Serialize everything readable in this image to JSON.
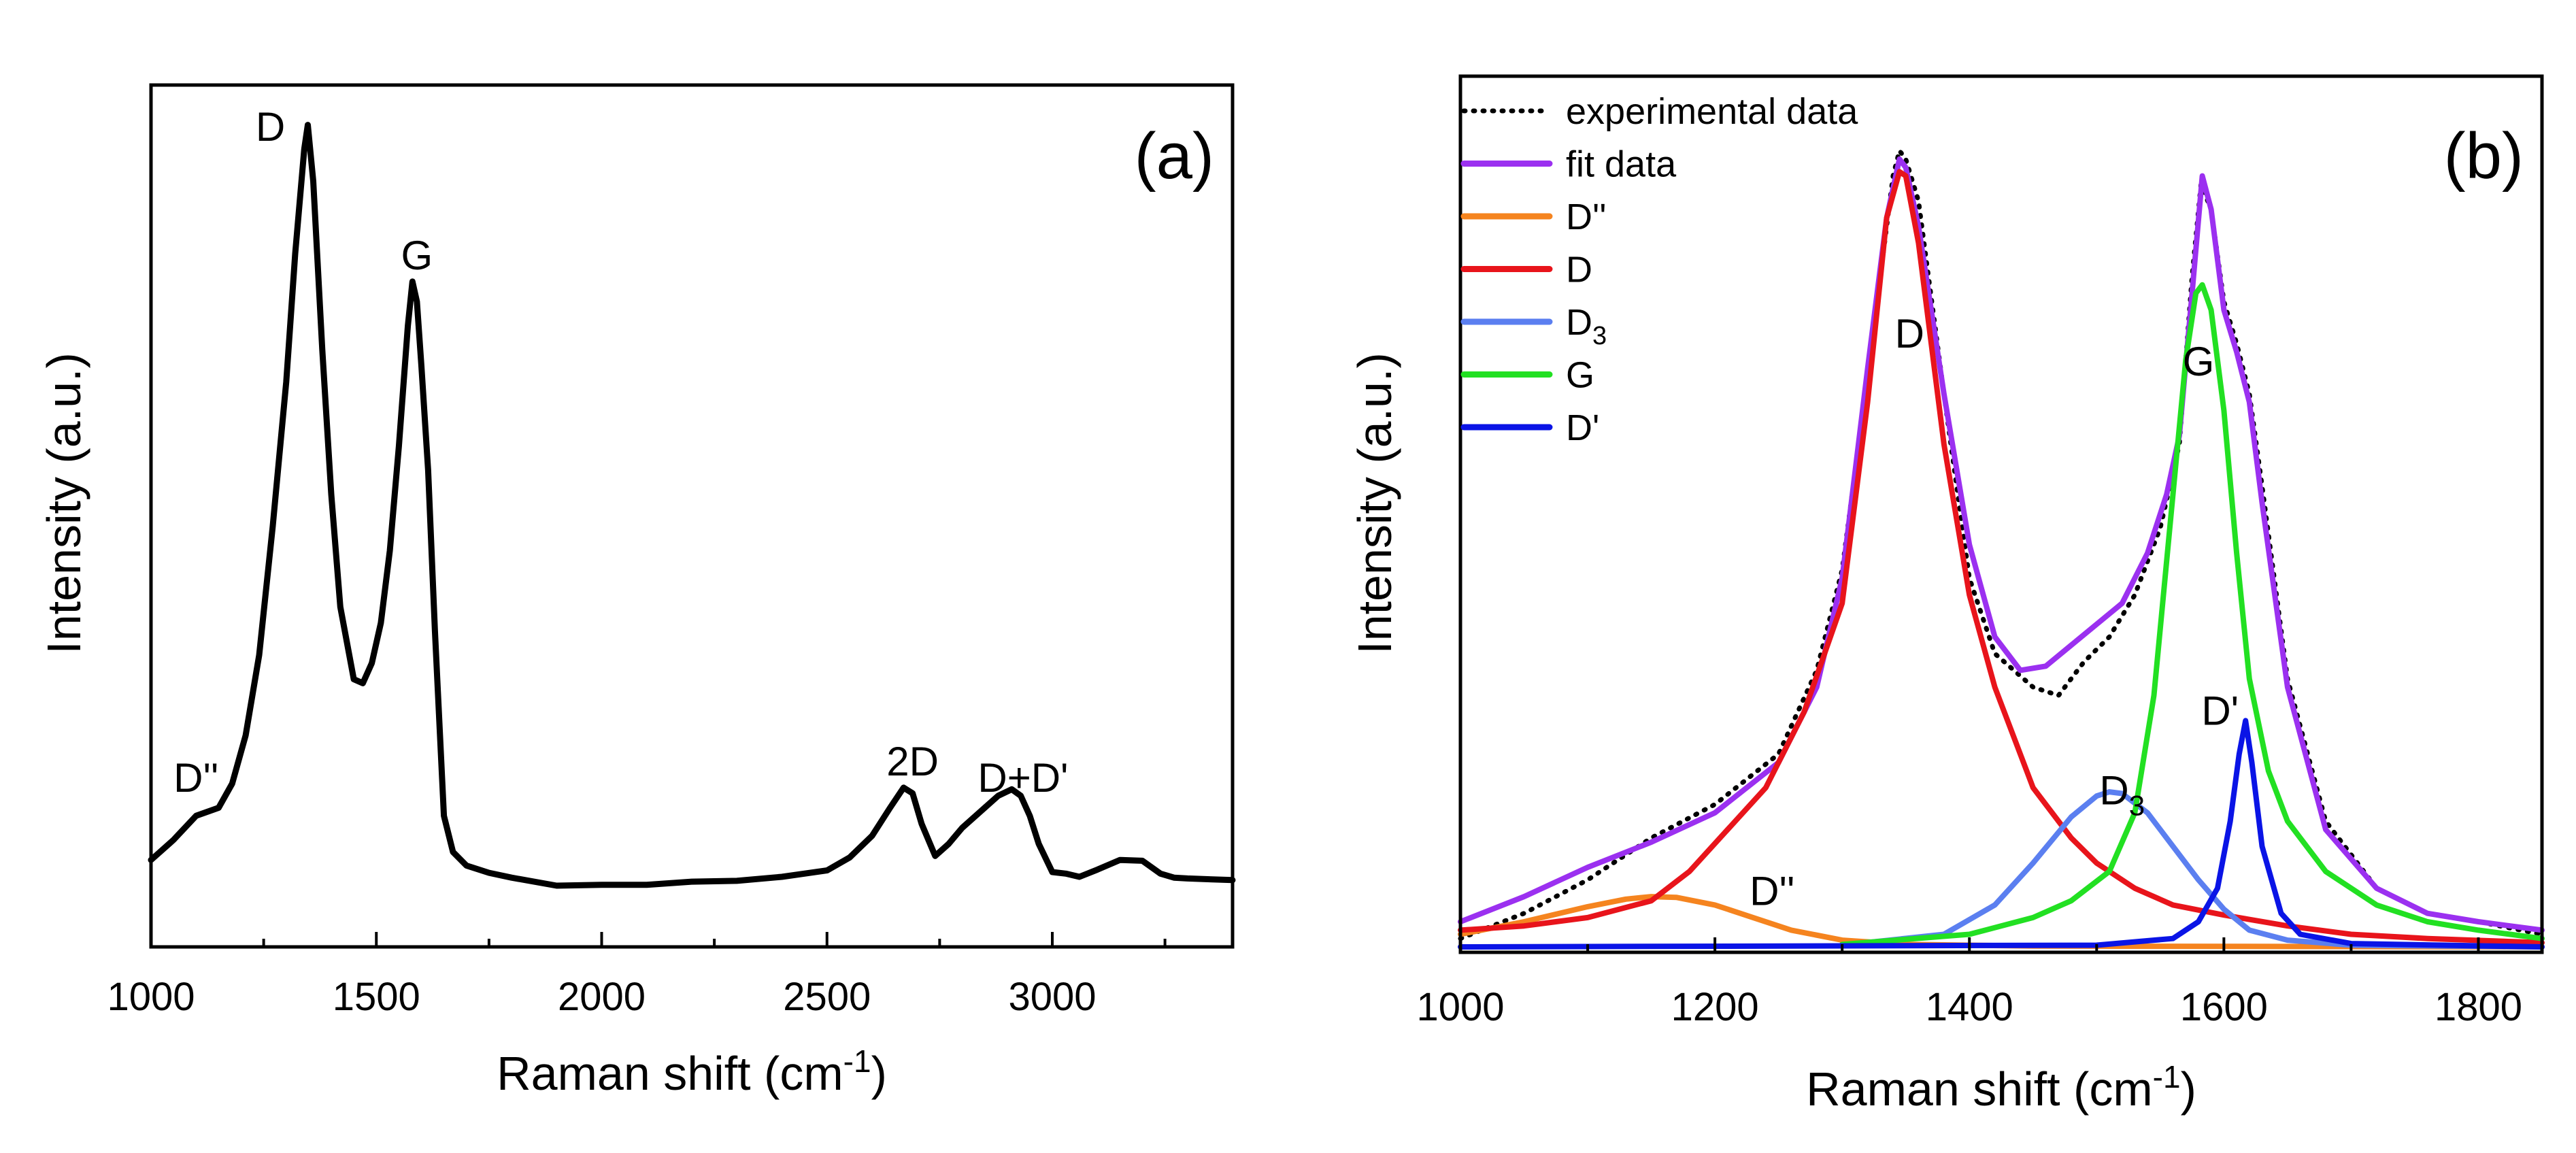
{
  "chart_data": [
    {
      "type": "line",
      "panel_label": "(a)",
      "xlabel": "Raman shift (cm",
      "xlabel_sup": "-1",
      "xlabel_end": ")",
      "ylabel": "Intensity (a.u.)",
      "xlim": [
        1000,
        3400
      ],
      "ylim": [
        0,
        100
      ],
      "x_ticks": [
        "1000",
        "1500",
        "2000",
        "2500",
        "3000"
      ],
      "x_tick_values": [
        1000,
        1500,
        2000,
        2500,
        3000
      ],
      "x_minor_ticks": [
        1250,
        1750,
        2250,
        2750,
        3250
      ],
      "annotations": [
        {
          "text": "D''",
          "x": 1100,
          "y": 15
        },
        {
          "text": "D",
          "x": 1265,
          "y": 96
        },
        {
          "text": "G",
          "x": 1590,
          "y": 80
        },
        {
          "text": "2D",
          "x": 2690,
          "y": 17
        },
        {
          "text": "D+D'",
          "x": 2935,
          "y": 15
        }
      ],
      "series": [
        {
          "name": "spectrum",
          "color": "#000000",
          "x": [
            1000,
            1050,
            1100,
            1150,
            1180,
            1210,
            1240,
            1270,
            1300,
            1320,
            1340,
            1348,
            1360,
            1380,
            1400,
            1420,
            1450,
            1470,
            1490,
            1510,
            1530,
            1550,
            1570,
            1580,
            1590,
            1600,
            1615,
            1630,
            1650,
            1670,
            1700,
            1750,
            1800,
            1900,
            2000,
            2100,
            2200,
            2300,
            2400,
            2500,
            2550,
            2600,
            2640,
            2670,
            2690,
            2710,
            2740,
            2770,
            2800,
            2850,
            2880,
            2910,
            2930,
            2950,
            2970,
            3000,
            3030,
            3060,
            3100,
            3150,
            3200,
            3240,
            3270,
            3300,
            3400
          ],
          "y": [
            6.5,
            9,
            12,
            13,
            16,
            22,
            32,
            48,
            66,
            82,
            95,
            98,
            91,
            70,
            52,
            38,
            29,
            28.5,
            31,
            36,
            45,
            58,
            73,
            78.5,
            76,
            68,
            55,
            35,
            12,
            7.5,
            5.8,
            4.9,
            4.3,
            3.3,
            3.4,
            3.4,
            3.8,
            3.9,
            4.4,
            5.2,
            6.8,
            9.5,
            13,
            15.5,
            14.8,
            11,
            7,
            8.5,
            10.5,
            13,
            14.5,
            15.3,
            14.5,
            12,
            8.5,
            5,
            4.8,
            4.4,
            5.3,
            6.5,
            6.4,
            4.8,
            4.3,
            4.2,
            4.0
          ]
        }
      ]
    },
    {
      "type": "line",
      "panel_label": "(b)",
      "xlabel": "Raman shift (cm",
      "xlabel_sup": "-1",
      "xlabel_end": ")",
      "ylabel": "Intensity (a.u.)",
      "xlim": [
        1000,
        1850
      ],
      "ylim": [
        0,
        100
      ],
      "x_ticks": [
        "1000",
        "1200",
        "1400",
        "1600",
        "1800"
      ],
      "x_tick_values": [
        1000,
        1200,
        1400,
        1600,
        1800
      ],
      "x_minor_ticks": [
        1100,
        1300,
        1500,
        1700
      ],
      "annotations": [
        {
          "text": "D",
          "x": 1353,
          "y": 71.5,
          "sub": ""
        },
        {
          "text": "G",
          "x": 1580,
          "y": 68.2,
          "sub": ""
        },
        {
          "text": "D",
          "x": 1520,
          "y": 17,
          "sub": "3"
        },
        {
          "text": "D'",
          "x": 1597,
          "y": 26.5,
          "sub": ""
        },
        {
          "text": "D''",
          "x": 1245,
          "y": 5,
          "sub": ""
        }
      ],
      "legend": [
        {
          "label": "experimental data",
          "sub": "",
          "color": "#000000",
          "dashed": true
        },
        {
          "label": "fit data",
          "sub": "",
          "color": "#9b30f0",
          "dashed": false
        },
        {
          "label": "D''",
          "sub": "",
          "color": "#f5841f",
          "dashed": false
        },
        {
          "label": "D",
          "sub": "",
          "color": "#e8141b",
          "dashed": false
        },
        {
          "label": "D",
          "sub": "3",
          "color": "#5b7ff0",
          "dashed": false
        },
        {
          "label": "G",
          "sub": "",
          "color": "#22e022",
          "dashed": false
        },
        {
          "label": "D'",
          "sub": "",
          "color": "#0a14e6",
          "dashed": false
        }
      ],
      "series": [
        {
          "name": "experimental data",
          "color": "#000000",
          "dashed": true,
          "x": [
            1000,
            1050,
            1100,
            1130,
            1150,
            1200,
            1250,
            1280,
            1300,
            1320,
            1340,
            1345,
            1350,
            1360,
            1380,
            1400,
            1420,
            1450,
            1470,
            1490,
            1510,
            1530,
            1550,
            1565,
            1575,
            1582,
            1590,
            1600,
            1610,
            1620,
            1630,
            1650,
            1680,
            1720,
            1760,
            1800,
            1850
          ],
          "y": [
            1,
            4,
            8,
            11,
            13,
            17,
            23,
            33,
            45,
            68,
            92,
            95,
            94,
            89,
            66,
            44,
            35,
            31,
            30,
            34,
            37,
            42,
            50,
            60,
            80,
            91,
            88,
            77,
            72,
            66,
            55,
            32,
            15,
            7,
            4,
            3,
            1.5
          ]
        },
        {
          "name": "fit data",
          "color": "#9b30f0",
          "dashed": false,
          "x": [
            1000,
            1050,
            1100,
            1150,
            1200,
            1250,
            1280,
            1300,
            1320,
            1335,
            1345,
            1350,
            1360,
            1380,
            1400,
            1420,
            1440,
            1460,
            1480,
            1500,
            1520,
            1540,
            1555,
            1565,
            1575,
            1583,
            1590,
            1600,
            1610,
            1620,
            1630,
            1650,
            1680,
            1720,
            1760,
            1800,
            1850
          ],
          "y": [
            3,
            6,
            9.5,
            12.5,
            16,
            22,
            31,
            44,
            69,
            87,
            94,
            93,
            86,
            66,
            48,
            37,
            33,
            33.5,
            36,
            38.5,
            41,
            47,
            54,
            61,
            78,
            92,
            88,
            76,
            71,
            65,
            53,
            31,
            14,
            7,
            4,
            3,
            2
          ]
        },
        {
          "name": "D''",
          "color": "#f5841f",
          "dashed": false,
          "x": [
            1000,
            1050,
            1100,
            1130,
            1150,
            1170,
            1200,
            1230,
            1260,
            1300,
            1350,
            1450,
            1850
          ],
          "y": [
            1.5,
            3,
            4.8,
            5.7,
            6,
            5.9,
            5,
            3.5,
            2,
            0.8,
            0.3,
            0.1,
            0
          ]
        },
        {
          "name": "D",
          "color": "#e8141b",
          "dashed": false,
          "x": [
            1000,
            1050,
            1100,
            1150,
            1180,
            1210,
            1240,
            1270,
            1300,
            1320,
            1335,
            1345,
            1350,
            1360,
            1380,
            1400,
            1420,
            1450,
            1480,
            1500,
            1530,
            1560,
            1600,
            1650,
            1700,
            1760,
            1850
          ],
          "y": [
            2,
            2.5,
            3.5,
            5.5,
            9,
            14,
            19,
            28,
            41,
            65,
            87,
            92.5,
            92,
            84,
            60,
            42,
            31,
            19,
            13,
            10,
            7,
            5,
            3.8,
            2.5,
            1.5,
            1,
            0.5
          ]
        },
        {
          "name": "D3",
          "color": "#5b7ff0",
          "dashed": false,
          "x": [
            1300,
            1380,
            1420,
            1450,
            1480,
            1500,
            1510,
            1520,
            1540,
            1560,
            1580,
            1600,
            1620,
            1650,
            1700,
            1850
          ],
          "y": [
            0.2,
            1.5,
            5,
            10,
            15.5,
            18,
            18.5,
            18.3,
            16,
            12,
            8,
            4.5,
            2,
            0.8,
            0.2,
            0
          ]
        },
        {
          "name": "G",
          "color": "#22e022",
          "dashed": false,
          "x": [
            1300,
            1400,
            1450,
            1480,
            1510,
            1530,
            1545,
            1560,
            1570,
            1578,
            1583,
            1590,
            1600,
            1610,
            1620,
            1635,
            1650,
            1680,
            1720,
            1760,
            1800,
            1850
          ],
          "y": [
            0.3,
            1.5,
            3.5,
            5.5,
            9,
            16,
            30,
            54,
            70,
            78,
            79,
            76,
            64,
            47,
            32,
            21,
            15,
            9,
            5,
            3,
            2,
            1
          ]
        },
        {
          "name": "D'",
          "color": "#0a14e6",
          "dashed": false,
          "x": [
            1000,
            1500,
            1560,
            1580,
            1595,
            1605,
            1612,
            1617,
            1622,
            1630,
            1645,
            1660,
            1700,
            1850
          ],
          "y": [
            0,
            0.2,
            1,
            3,
            7,
            15,
            23,
            27,
            22,
            12,
            4,
            1.5,
            0.4,
            0
          ]
        }
      ]
    }
  ]
}
